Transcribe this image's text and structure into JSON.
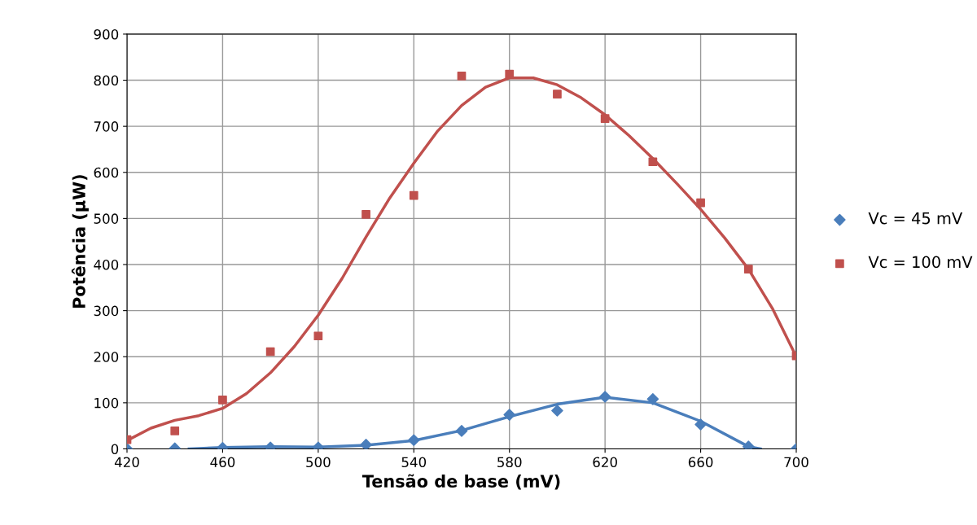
{
  "chart_data": {
    "type": "scatter",
    "xlabel": "Tensão de base (mV)",
    "ylabel": "Potência (µW)",
    "x": [
      420,
      440,
      460,
      480,
      500,
      520,
      540,
      560,
      580,
      600,
      620,
      640,
      660,
      680,
      700
    ],
    "xlim": [
      420,
      700
    ],
    "xticks": [
      420,
      460,
      500,
      540,
      580,
      620,
      660,
      700
    ],
    "ylim": [
      0,
      900
    ],
    "yticks": [
      0,
      100,
      200,
      300,
      400,
      500,
      600,
      700,
      800,
      900
    ],
    "grid": true,
    "legend": "right",
    "series": [
      {
        "name": "Vc = 45 mV",
        "color": "#4a7ebb",
        "marker": "diamond",
        "values": [
          0,
          1,
          2,
          3,
          3,
          9,
          19,
          39,
          74,
          83,
          113,
          108,
          53,
          5,
          0
        ]
      },
      {
        "name": "Vc = 100 mV",
        "color": "#c0504d",
        "marker": "square",
        "values": [
          20,
          39,
          106,
          211,
          245,
          509,
          550,
          809,
          813,
          770,
          717,
          623,
          534,
          390,
          202
        ]
      },
      {
        "type": "line",
        "color": "#4a7ebb",
        "x": [
          446,
          460,
          480,
          500,
          520,
          540,
          560,
          580,
          600,
          620,
          640,
          660,
          680,
          685
        ],
        "values": [
          0,
          3,
          5,
          4,
          8,
          18,
          40,
          70,
          97,
          112,
          100,
          60,
          5,
          0
        ]
      },
      {
        "type": "line",
        "color": "#c0504d",
        "x": [
          420,
          430,
          440,
          450,
          460,
          470,
          480,
          490,
          500,
          510,
          520,
          530,
          540,
          550,
          560,
          570,
          580,
          590,
          600,
          610,
          620,
          630,
          640,
          650,
          660,
          670,
          680,
          690,
          700
        ],
        "values": [
          18,
          45,
          62,
          72,
          88,
          120,
          165,
          222,
          290,
          370,
          460,
          545,
          620,
          690,
          745,
          785,
          805,
          805,
          790,
          762,
          725,
          680,
          630,
          576,
          520,
          458,
          390,
          305,
          200
        ]
      }
    ]
  }
}
